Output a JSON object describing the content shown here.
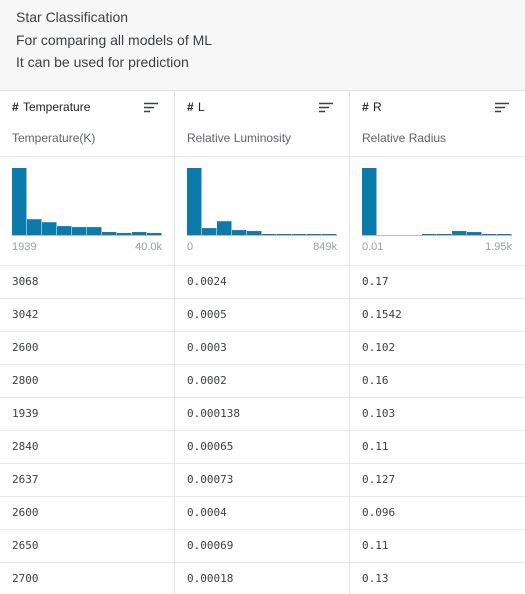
{
  "header": {
    "lines": [
      "Star Classification",
      "For comparing all models of ML",
      "It can be used for prediction"
    ]
  },
  "table": {
    "columns": [
      {
        "type_icon": "#",
        "name": "Temperature",
        "description": "Temperature(K)",
        "histogram": {
          "bars": [
            68,
            16,
            13,
            9,
            8,
            8,
            3,
            2,
            3,
            2
          ],
          "min_label": "1939",
          "max_label": "40.0k"
        }
      },
      {
        "type_icon": "#",
        "name": "L",
        "description": "Relative Luminosity",
        "histogram": {
          "bars": [
            68,
            7,
            14,
            5,
            4,
            1,
            1,
            1,
            1,
            1
          ],
          "min_label": "0",
          "max_label": "849k"
        }
      },
      {
        "type_icon": "#",
        "name": "R",
        "description": "Relative Radius",
        "histogram": {
          "bars": [
            68,
            0,
            0,
            0,
            1,
            1,
            4,
            3,
            1,
            1
          ],
          "min_label": "0.01",
          "max_label": "1.95k"
        }
      }
    ],
    "rows": [
      [
        "3068",
        "0.0024",
        "0.17"
      ],
      [
        "3042",
        "0.0005",
        "0.1542"
      ],
      [
        "2600",
        "0.0003",
        "0.102"
      ],
      [
        "2800",
        "0.0002",
        "0.16"
      ],
      [
        "1939",
        "0.000138",
        "0.103"
      ],
      [
        "2840",
        "0.00065",
        "0.11"
      ],
      [
        "2637",
        "0.00073",
        "0.127"
      ],
      [
        "2600",
        "0.0004",
        "0.096"
      ],
      [
        "2650",
        "0.00069",
        "0.11"
      ],
      [
        "2700",
        "0.00018",
        "0.13"
      ]
    ]
  }
}
